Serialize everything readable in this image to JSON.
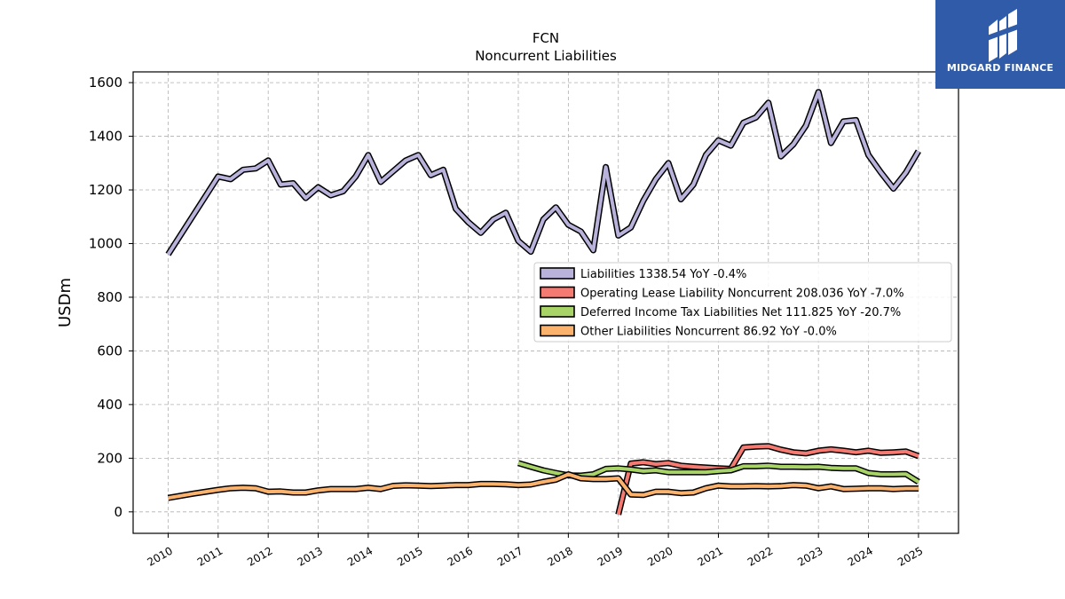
{
  "chart_data": {
    "type": "line",
    "title": "FCN",
    "subtitle": "Noncurrent  Liabilities",
    "ylabel": "USDm",
    "xlabel": "",
    "ylim": [
      -80,
      1640
    ],
    "xlim": [
      2009.3,
      2025.8
    ],
    "yticks": [
      0,
      200,
      400,
      600,
      800,
      1000,
      1200,
      1400,
      1600
    ],
    "xticks": [
      "2010",
      "2011",
      "2012",
      "2013",
      "2014",
      "2015",
      "2016",
      "2017",
      "2018",
      "2019",
      "2020",
      "2021",
      "2022",
      "2023",
      "2024",
      "2025"
    ],
    "grid": true,
    "legend_position": "center-right",
    "series": [
      {
        "name": "Liabilities",
        "legend": "Liabilities  1338.54 YoY -0.4%",
        "color": "#b9b3dc",
        "points": [
          [
            2010.0,
            960
          ],
          [
            2011.0,
            1250
          ],
          [
            2011.25,
            1240
          ],
          [
            2011.5,
            1275
          ],
          [
            2011.75,
            1280
          ],
          [
            2012.0,
            1310
          ],
          [
            2012.25,
            1220
          ],
          [
            2012.5,
            1225
          ],
          [
            2012.75,
            1170
          ],
          [
            2013.0,
            1210
          ],
          [
            2013.25,
            1180
          ],
          [
            2013.5,
            1195
          ],
          [
            2013.75,
            1250
          ],
          [
            2014.0,
            1330
          ],
          [
            2014.25,
            1230
          ],
          [
            2014.5,
            1270
          ],
          [
            2014.75,
            1310
          ],
          [
            2015.0,
            1330
          ],
          [
            2015.25,
            1255
          ],
          [
            2015.5,
            1275
          ],
          [
            2015.75,
            1130
          ],
          [
            2016.0,
            1080
          ],
          [
            2016.25,
            1040
          ],
          [
            2016.5,
            1090
          ],
          [
            2016.75,
            1115
          ],
          [
            2017.0,
            1010
          ],
          [
            2017.25,
            970
          ],
          [
            2017.5,
            1090
          ],
          [
            2017.75,
            1135
          ],
          [
            2018.0,
            1070
          ],
          [
            2018.25,
            1045
          ],
          [
            2018.5,
            975
          ],
          [
            2018.75,
            1285
          ],
          [
            2019.0,
            1030
          ],
          [
            2019.25,
            1060
          ],
          [
            2019.5,
            1160
          ],
          [
            2019.75,
            1240
          ],
          [
            2020.0,
            1300
          ],
          [
            2020.25,
            1165
          ],
          [
            2020.5,
            1220
          ],
          [
            2020.75,
            1330
          ],
          [
            2021.0,
            1385
          ],
          [
            2021.25,
            1365
          ],
          [
            2021.5,
            1450
          ],
          [
            2021.75,
            1470
          ],
          [
            2022.0,
            1525
          ],
          [
            2022.25,
            1325
          ],
          [
            2022.5,
            1370
          ],
          [
            2022.75,
            1440
          ],
          [
            2023.0,
            1565
          ],
          [
            2023.25,
            1375
          ],
          [
            2023.5,
            1455
          ],
          [
            2023.75,
            1460
          ],
          [
            2024.0,
            1330
          ],
          [
            2024.25,
            1265
          ],
          [
            2024.5,
            1205
          ],
          [
            2024.75,
            1265
          ],
          [
            2025.0,
            1345
          ]
        ]
      },
      {
        "name": "Operating Lease Liability Noncurrent",
        "legend": "Operating Lease Liability Noncurrent  208.036 YoY -7.0%",
        "color": "#f47a72",
        "points": [
          [
            2019.0,
            -10
          ],
          [
            2019.25,
            180
          ],
          [
            2019.5,
            185
          ],
          [
            2019.75,
            178
          ],
          [
            2020.0,
            182
          ],
          [
            2020.25,
            172
          ],
          [
            2020.5,
            168
          ],
          [
            2020.75,
            165
          ],
          [
            2021.0,
            162
          ],
          [
            2021.25,
            160
          ],
          [
            2021.5,
            240
          ],
          [
            2021.75,
            243
          ],
          [
            2022.0,
            245
          ],
          [
            2022.25,
            232
          ],
          [
            2022.5,
            222
          ],
          [
            2022.75,
            218
          ],
          [
            2023.0,
            228
          ],
          [
            2023.25,
            233
          ],
          [
            2023.5,
            228
          ],
          [
            2023.75,
            222
          ],
          [
            2024.0,
            228
          ],
          [
            2024.25,
            220
          ],
          [
            2024.5,
            222
          ],
          [
            2024.75,
            225
          ],
          [
            2025.0,
            208
          ]
        ]
      },
      {
        "name": "Deferred Income Tax Liabilities Net",
        "legend": "Deferred Income Tax Liabilities Net  111.825 YoY -20.7%",
        "color": "#a8d467",
        "points": [
          [
            2017.0,
            182
          ],
          [
            2017.25,
            168
          ],
          [
            2017.5,
            155
          ],
          [
            2017.75,
            145
          ],
          [
            2018.0,
            136
          ],
          [
            2018.25,
            135
          ],
          [
            2018.5,
            140
          ],
          [
            2018.75,
            160
          ],
          [
            2019.0,
            162
          ],
          [
            2019.25,
            158
          ],
          [
            2019.5,
            152
          ],
          [
            2019.75,
            155
          ],
          [
            2020.0,
            148
          ],
          [
            2020.25,
            148
          ],
          [
            2020.5,
            148
          ],
          [
            2020.75,
            148
          ],
          [
            2021.0,
            152
          ],
          [
            2021.25,
            155
          ],
          [
            2021.5,
            170
          ],
          [
            2021.75,
            170
          ],
          [
            2022.0,
            172
          ],
          [
            2022.25,
            168
          ],
          [
            2022.5,
            168
          ],
          [
            2022.75,
            167
          ],
          [
            2023.0,
            168
          ],
          [
            2023.25,
            164
          ],
          [
            2023.5,
            162
          ],
          [
            2023.75,
            162
          ],
          [
            2024.0,
            145
          ],
          [
            2024.25,
            140
          ],
          [
            2024.5,
            140
          ],
          [
            2024.75,
            141
          ],
          [
            2025.0,
            112
          ]
        ]
      },
      {
        "name": "Other Liabilities Noncurrent",
        "legend": "Other Liabilities Noncurrent  86.92 YoY -0.0%",
        "color": "#fbb26c",
        "points": [
          [
            2010.0,
            52
          ],
          [
            2010.5,
            68
          ],
          [
            2011.0,
            82
          ],
          [
            2011.25,
            88
          ],
          [
            2011.5,
            90
          ],
          [
            2011.75,
            88
          ],
          [
            2012.0,
            75
          ],
          [
            2012.25,
            76
          ],
          [
            2012.5,
            72
          ],
          [
            2012.75,
            72
          ],
          [
            2013.0,
            80
          ],
          [
            2013.25,
            85
          ],
          [
            2013.5,
            85
          ],
          [
            2013.75,
            85
          ],
          [
            2014.0,
            90
          ],
          [
            2014.25,
            85
          ],
          [
            2014.5,
            97
          ],
          [
            2014.75,
            99
          ],
          [
            2015.0,
            98
          ],
          [
            2015.25,
            96
          ],
          [
            2015.5,
            98
          ],
          [
            2015.75,
            100
          ],
          [
            2016.0,
            100
          ],
          [
            2016.25,
            104
          ],
          [
            2016.5,
            104
          ],
          [
            2016.75,
            103
          ],
          [
            2017.0,
            100
          ],
          [
            2017.25,
            102
          ],
          [
            2017.5,
            112
          ],
          [
            2017.75,
            120
          ],
          [
            2018.0,
            140
          ],
          [
            2018.25,
            125
          ],
          [
            2018.5,
            122
          ],
          [
            2018.75,
            122
          ],
          [
            2019.0,
            125
          ],
          [
            2019.25,
            65
          ],
          [
            2019.5,
            63
          ],
          [
            2019.75,
            75
          ],
          [
            2020.0,
            75
          ],
          [
            2020.25,
            70
          ],
          [
            2020.5,
            72
          ],
          [
            2020.75,
            88
          ],
          [
            2021.0,
            98
          ],
          [
            2021.25,
            95
          ],
          [
            2021.5,
            95
          ],
          [
            2021.75,
            96
          ],
          [
            2022.0,
            95
          ],
          [
            2022.25,
            96
          ],
          [
            2022.5,
            100
          ],
          [
            2022.75,
            98
          ],
          [
            2023.0,
            88
          ],
          [
            2023.25,
            95
          ],
          [
            2023.5,
            85
          ],
          [
            2023.75,
            86
          ],
          [
            2024.0,
            88
          ],
          [
            2024.25,
            88
          ],
          [
            2024.5,
            85
          ],
          [
            2024.75,
            87
          ],
          [
            2025.0,
            87
          ]
        ]
      }
    ]
  },
  "logo": {
    "text": "MIDGARD FINANCE",
    "background": "#2f5ba9"
  }
}
